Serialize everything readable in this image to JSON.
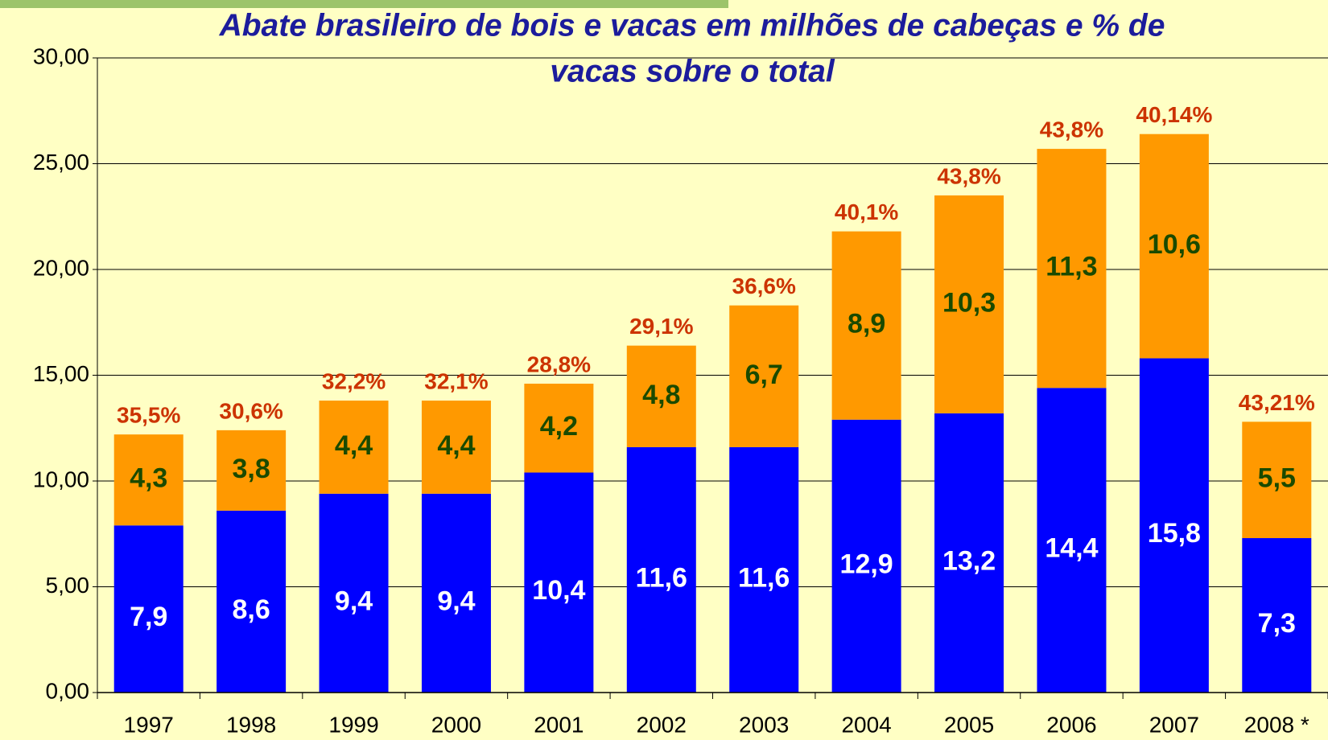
{
  "chart_data": {
    "type": "stacked_bar",
    "title": [
      "Abate brasileiro de bois e vacas em milhões de cabeças e % de",
      "vacas sobre o total"
    ],
    "categories": [
      "1997",
      "1998",
      "1999",
      "2000",
      "2001",
      "2002",
      "2003",
      "2004",
      "2005",
      "2006",
      "2007",
      "2008 *"
    ],
    "series": [
      {
        "color": "#0000ff",
        "values": [
          7.9,
          8.6,
          9.4,
          9.4,
          10.4,
          11.6,
          11.6,
          12.9,
          13.2,
          14.4,
          15.8,
          7.3
        ],
        "value_labels": [
          "7,9",
          "8,6",
          "9,4",
          "9,4",
          "10,4",
          "11,6",
          "11,6",
          "12,9",
          "13,2",
          "14,4",
          "15,8",
          "7,3"
        ]
      },
      {
        "color": "#ff9900",
        "values": [
          4.3,
          3.8,
          4.4,
          4.4,
          4.2,
          4.8,
          6.7,
          8.9,
          10.3,
          11.3,
          10.6,
          5.5
        ],
        "value_labels": [
          "4,3",
          "3,8",
          "4,4",
          "4,4",
          "4,2",
          "4,8",
          "6,7",
          "8,9",
          "10,3",
          "11,3",
          "10,6",
          "5,5"
        ]
      }
    ],
    "annotations": [
      "35,5%",
      "30,6%",
      "32,2%",
      "32,1%",
      "28,8%",
      "29,1%",
      "36,6%",
      "40,1%",
      "43,8%",
      "43,8%",
      "40,14%",
      "43,21%"
    ],
    "ylim": [
      0,
      30
    ],
    "yticks": [
      {
        "value": 0,
        "label": "0,00"
      },
      {
        "value": 5,
        "label": "5,00"
      },
      {
        "value": 10,
        "label": "10,00"
      },
      {
        "value": 15,
        "label": "15,00"
      },
      {
        "value": 20,
        "label": "20,00"
      },
      {
        "value": 25,
        "label": "25,00"
      },
      {
        "value": 30,
        "label": "30,00"
      }
    ],
    "grid": true
  }
}
